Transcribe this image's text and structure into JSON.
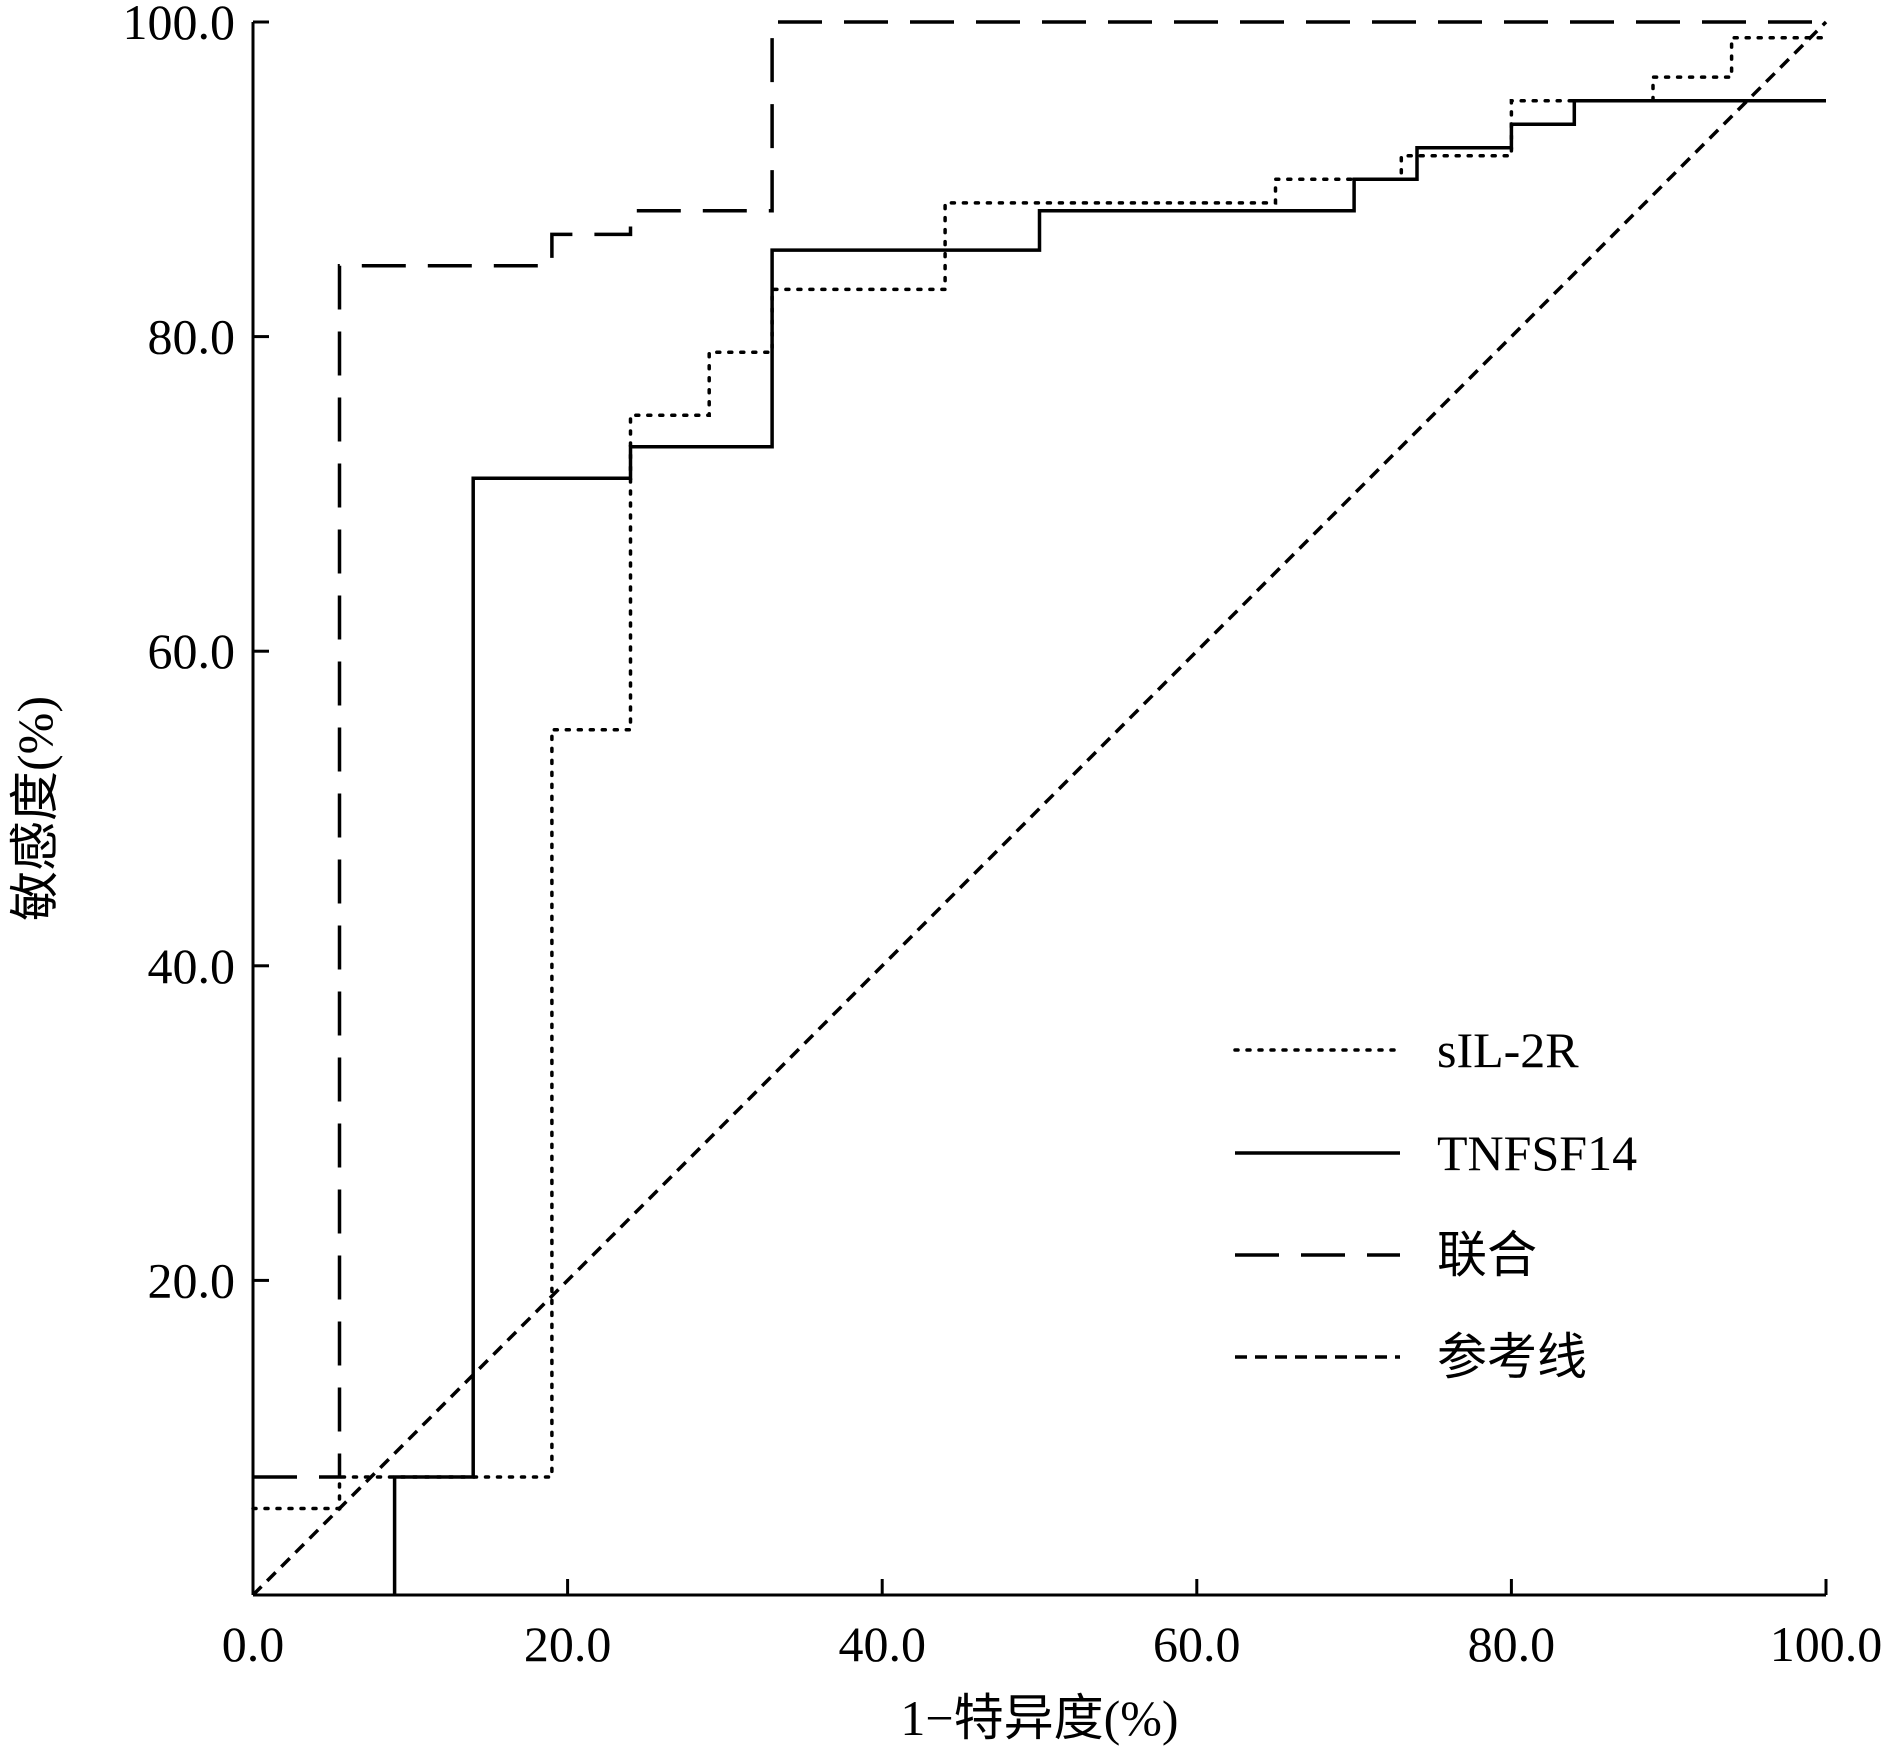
{
  "chart_data": {
    "type": "line",
    "title": "",
    "xlabel": "1−特异度(%)",
    "ylabel": "敏感度(%)",
    "xlim": [
      0,
      100
    ],
    "ylim": [
      0,
      100
    ],
    "x_ticks": [
      "0.0",
      "20.0",
      "40.0",
      "60.0",
      "80.0",
      "100.0"
    ],
    "y_ticks": [
      "0.0",
      "20.0",
      "40.0",
      "60.0",
      "80.0",
      "100.0"
    ],
    "grid": false,
    "legend_position": "bottom-right",
    "series": [
      {
        "name": "sIL-2R",
        "style": "dotted",
        "x": [
          0,
          3,
          5.5,
          5.5,
          19,
          19,
          24,
          24,
          29,
          29,
          33,
          33,
          44,
          44,
          65,
          65,
          73,
          73,
          80,
          80,
          89,
          89,
          94,
          94,
          100
        ],
        "y": [
          5.5,
          5.5,
          5.5,
          7.5,
          7.5,
          55,
          55,
          75,
          75,
          79,
          79,
          83,
          83,
          88.5,
          88.5,
          90,
          90,
          91.5,
          91.5,
          95,
          95,
          96.5,
          96.5,
          99,
          99
        ]
      },
      {
        "name": "TNFSF14",
        "style": "solid",
        "x": [
          9,
          9,
          14,
          14,
          24,
          24,
          33,
          33,
          50,
          50,
          70,
          70,
          74,
          74,
          80,
          80,
          84,
          84,
          100
        ],
        "y": [
          0,
          7.5,
          7.5,
          71,
          71,
          73,
          73,
          85.5,
          85.5,
          88,
          88,
          90,
          90,
          92,
          92,
          93.5,
          93.5,
          95,
          95
        ]
      },
      {
        "name": "联合",
        "style": "dashed",
        "x": [
          0,
          5.5,
          5.5,
          19,
          19,
          24,
          24,
          33,
          33,
          100
        ],
        "y": [
          7.5,
          7.5,
          84.5,
          84.5,
          86.5,
          86.5,
          88,
          88,
          100,
          100
        ]
      },
      {
        "name": "参考线",
        "style": "short-dashed",
        "x": [
          0,
          100
        ],
        "y": [
          0,
          100
        ]
      }
    ]
  }
}
